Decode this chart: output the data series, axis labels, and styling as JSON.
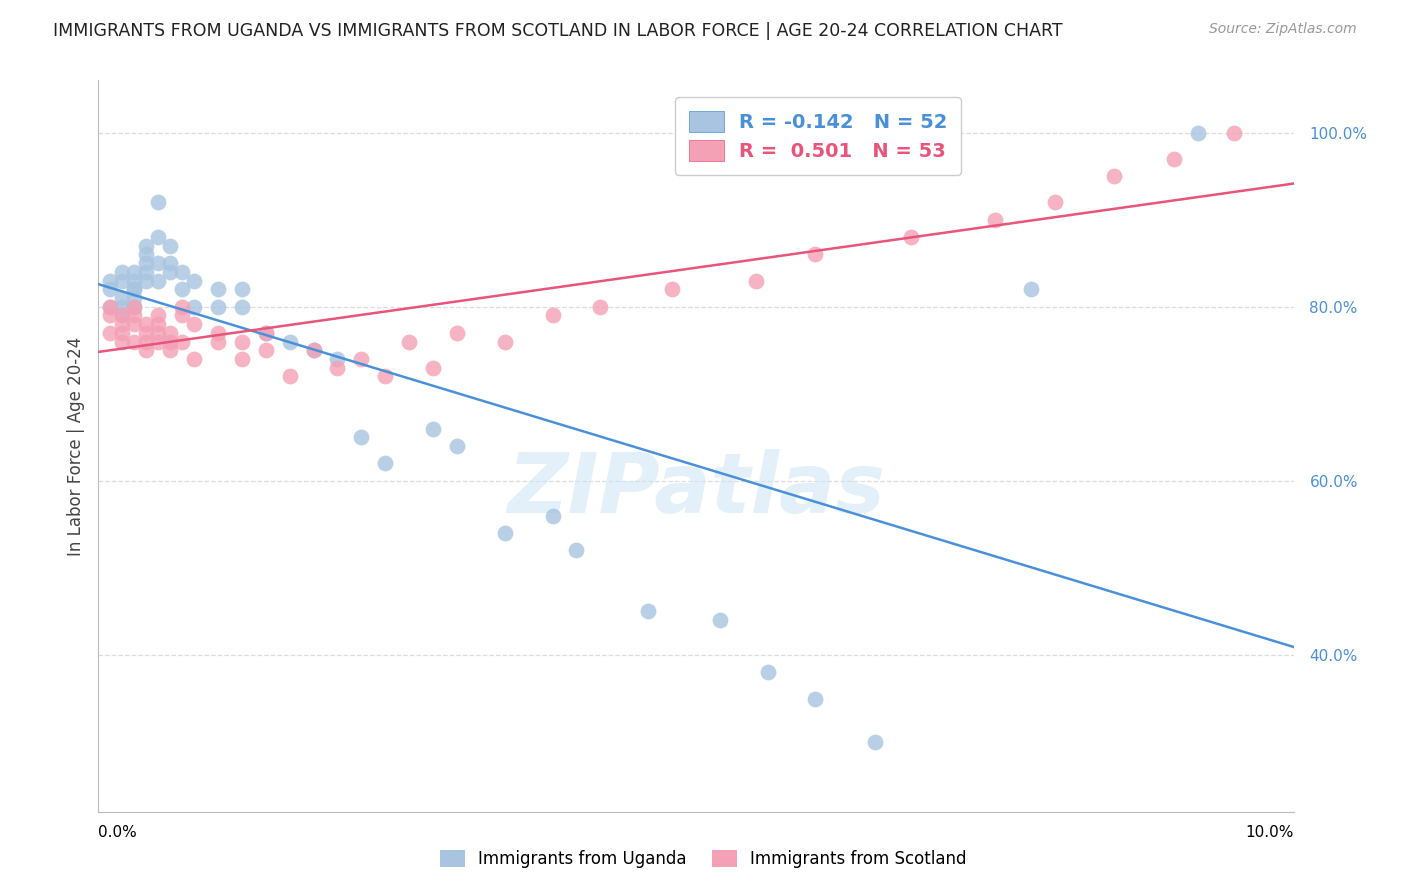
{
  "title": "IMMIGRANTS FROM UGANDA VS IMMIGRANTS FROM SCOTLAND IN LABOR FORCE | AGE 20-24 CORRELATION CHART",
  "source": "Source: ZipAtlas.com",
  "ylabel": "In Labor Force | Age 20-24",
  "xlim": [
    0.0,
    0.1
  ],
  "ylim": [
    0.22,
    1.06
  ],
  "yticks": [
    0.4,
    0.6,
    0.8,
    1.0
  ],
  "ytick_labels": [
    "40.0%",
    "60.0%",
    "80.0%",
    "100.0%"
  ],
  "watermark_zip": "ZIP",
  "watermark_atlas": "atlas",
  "legend_r_uganda": "-0.142",
  "legend_n_uganda": "52",
  "legend_r_scotland": "0.501",
  "legend_n_scotland": "53",
  "uganda_color": "#a8c4e0",
  "scotland_color": "#f4a0b5",
  "uganda_line_color": "#4a90d9",
  "scotland_line_color": "#e8547a",
  "uganda_points_x": [
    0.001,
    0.001,
    0.001,
    0.002,
    0.002,
    0.002,
    0.002,
    0.002,
    0.003,
    0.003,
    0.003,
    0.003,
    0.003,
    0.003,
    0.004,
    0.004,
    0.004,
    0.004,
    0.004,
    0.005,
    0.005,
    0.005,
    0.005,
    0.006,
    0.006,
    0.006,
    0.007,
    0.007,
    0.008,
    0.008,
    0.01,
    0.01,
    0.012,
    0.012,
    0.014,
    0.016,
    0.018,
    0.02,
    0.022,
    0.024,
    0.028,
    0.03,
    0.034,
    0.038,
    0.04,
    0.046,
    0.052,
    0.056,
    0.06,
    0.065,
    0.078,
    0.092
  ],
  "uganda_points_y": [
    0.8,
    0.82,
    0.83,
    0.81,
    0.83,
    0.84,
    0.79,
    0.8,
    0.82,
    0.83,
    0.84,
    0.8,
    0.82,
    0.81,
    0.83,
    0.85,
    0.87,
    0.84,
    0.86,
    0.85,
    0.83,
    0.88,
    0.92,
    0.85,
    0.87,
    0.84,
    0.82,
    0.84,
    0.8,
    0.83,
    0.8,
    0.82,
    0.8,
    0.82,
    0.77,
    0.76,
    0.75,
    0.74,
    0.65,
    0.62,
    0.66,
    0.64,
    0.54,
    0.56,
    0.52,
    0.45,
    0.44,
    0.38,
    0.35,
    0.3,
    0.82,
    1.0
  ],
  "scotland_points_x": [
    0.001,
    0.001,
    0.001,
    0.002,
    0.002,
    0.002,
    0.002,
    0.003,
    0.003,
    0.003,
    0.003,
    0.004,
    0.004,
    0.004,
    0.004,
    0.005,
    0.005,
    0.005,
    0.005,
    0.006,
    0.006,
    0.006,
    0.007,
    0.007,
    0.007,
    0.008,
    0.008,
    0.01,
    0.01,
    0.012,
    0.012,
    0.014,
    0.014,
    0.016,
    0.018,
    0.02,
    0.022,
    0.024,
    0.026,
    0.028,
    0.03,
    0.034,
    0.038,
    0.042,
    0.048,
    0.055,
    0.06,
    0.068,
    0.075,
    0.08,
    0.085,
    0.09,
    0.095
  ],
  "scotland_points_y": [
    0.79,
    0.77,
    0.8,
    0.77,
    0.79,
    0.76,
    0.78,
    0.78,
    0.8,
    0.76,
    0.79,
    0.75,
    0.77,
    0.78,
    0.76,
    0.79,
    0.76,
    0.77,
    0.78,
    0.75,
    0.76,
    0.77,
    0.76,
    0.79,
    0.8,
    0.74,
    0.78,
    0.76,
    0.77,
    0.76,
    0.74,
    0.75,
    0.77,
    0.72,
    0.75,
    0.73,
    0.74,
    0.72,
    0.76,
    0.73,
    0.77,
    0.76,
    0.79,
    0.8,
    0.82,
    0.83,
    0.86,
    0.88,
    0.9,
    0.92,
    0.95,
    0.97,
    1.0
  ],
  "background_color": "#ffffff",
  "grid_color": "#dddddd"
}
